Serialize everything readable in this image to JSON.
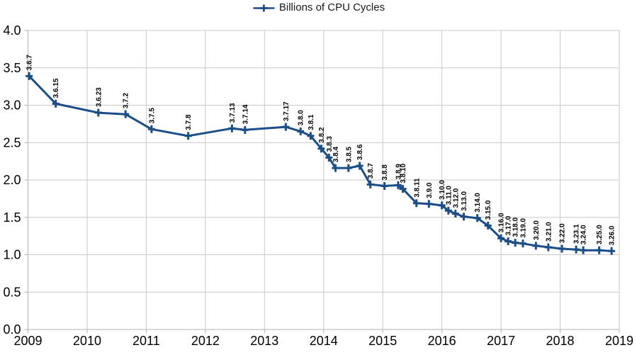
{
  "legend": {
    "label": "Billions of CPU Cycles"
  },
  "chart_data": {
    "type": "line",
    "title": "",
    "xlabel": "",
    "ylabel": "",
    "legend_position": "top-center",
    "grid": true,
    "marker": "plus",
    "point_label_rotation": -90,
    "xlim": [
      2009,
      2019
    ],
    "ylim": [
      0.0,
      4.0
    ],
    "x_ticks": [
      "2009",
      "2010",
      "2011",
      "2012",
      "2013",
      "2014",
      "2015",
      "2016",
      "2017",
      "2018",
      "2019"
    ],
    "y_ticks": [
      "0.0",
      "0.5",
      "1.0",
      "1.5",
      "2.0",
      "2.5",
      "3.0",
      "3.5",
      "4.0"
    ],
    "colors": {
      "line": "#1b4e89",
      "grid": "#c9c9c9",
      "axis": "#b0b0b0",
      "tick_label": "#000000",
      "point_label": "#000000",
      "background": "#ffffff"
    },
    "series": [
      {
        "name": "Billions of CPU Cycles",
        "points": [
          {
            "label": "3.6.7",
            "x": 2009.02,
            "y": 3.39
          },
          {
            "label": "3.6.15",
            "x": 2009.47,
            "y": 3.02
          },
          {
            "label": "3.6.23",
            "x": 2010.19,
            "y": 2.9
          },
          {
            "label": "3.7.2",
            "x": 2010.65,
            "y": 2.88
          },
          {
            "label": "3.7.5",
            "x": 2011.09,
            "y": 2.68
          },
          {
            "label": "3.7.8",
            "x": 2011.71,
            "y": 2.59
          },
          {
            "label": "3.7.13",
            "x": 2012.45,
            "y": 2.69
          },
          {
            "label": "3.7.14",
            "x": 2012.67,
            "y": 2.67
          },
          {
            "label": "3.7.17",
            "x": 2013.36,
            "y": 2.71
          },
          {
            "label": "3.8.0",
            "x": 2013.61,
            "y": 2.65
          },
          {
            "label": "3.8.1",
            "x": 2013.78,
            "y": 2.59
          },
          {
            "label": "3.8.2",
            "x": 2013.96,
            "y": 2.42
          },
          {
            "label": "3.8.3",
            "x": 2014.09,
            "y": 2.3
          },
          {
            "label": "3.8.4",
            "x": 2014.2,
            "y": 2.16
          },
          {
            "label": "3.8.5",
            "x": 2014.42,
            "y": 2.16
          },
          {
            "label": "3.8.6",
            "x": 2014.61,
            "y": 2.19
          },
          {
            "label": "3.8.7",
            "x": 2014.79,
            "y": 1.94
          },
          {
            "label": "3.8.8",
            "x": 2015.03,
            "y": 1.92
          },
          {
            "label": "3.8.9",
            "x": 2015.26,
            "y": 1.93
          },
          {
            "label": "3.8.10",
            "x": 2015.34,
            "y": 1.88
          },
          {
            "label": "3.8.11",
            "x": 2015.57,
            "y": 1.69
          },
          {
            "label": "3.9.0",
            "x": 2015.78,
            "y": 1.68
          },
          {
            "label": "3.10.0",
            "x": 2016.0,
            "y": 1.66
          },
          {
            "label": "3.11.0",
            "x": 2016.11,
            "y": 1.59
          },
          {
            "label": "3.12.0",
            "x": 2016.23,
            "y": 1.55
          },
          {
            "label": "3.13.0",
            "x": 2016.37,
            "y": 1.51
          },
          {
            "label": "3.14.0",
            "x": 2016.6,
            "y": 1.49
          },
          {
            "label": "3.15.0",
            "x": 2016.78,
            "y": 1.39
          },
          {
            "label": "3.16.0",
            "x": 2017.0,
            "y": 1.22
          },
          {
            "label": "3.17.0",
            "x": 2017.12,
            "y": 1.18
          },
          {
            "label": "3.18.0",
            "x": 2017.24,
            "y": 1.16
          },
          {
            "label": "3.19.0",
            "x": 2017.37,
            "y": 1.15
          },
          {
            "label": "3.20.0",
            "x": 2017.59,
            "y": 1.12
          },
          {
            "label": "3.21.0",
            "x": 2017.8,
            "y": 1.1
          },
          {
            "label": "3.22.0",
            "x": 2018.03,
            "y": 1.08
          },
          {
            "label": "3.23.1",
            "x": 2018.27,
            "y": 1.07
          },
          {
            "label": "3.24.0",
            "x": 2018.39,
            "y": 1.06
          },
          {
            "label": "3.25.0",
            "x": 2018.66,
            "y": 1.06
          },
          {
            "label": "3.26.0",
            "x": 2018.87,
            "y": 1.05
          }
        ]
      }
    ]
  }
}
